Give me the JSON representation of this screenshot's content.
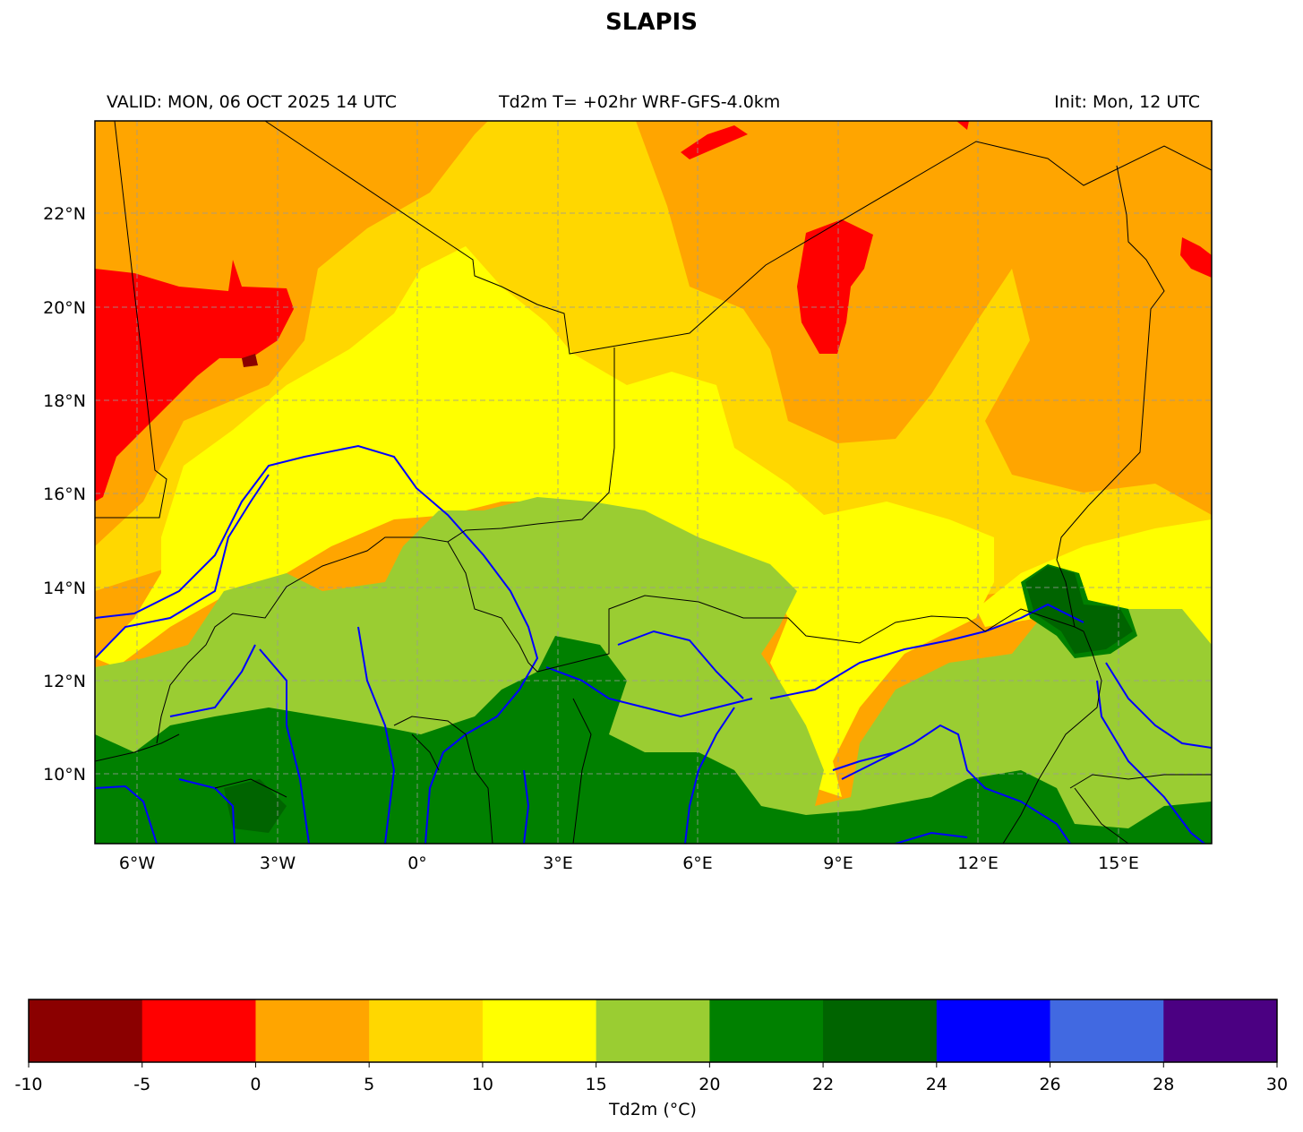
{
  "title": "SLAPIS",
  "subtitle_left": "VALID: MON, 06 OCT 2025 14 UTC",
  "subtitle_center": "Td2m T= +02hr WRF-GFS-4.0km",
  "subtitle_right": "Init: Mon, 12 UTC",
  "map": {
    "lon_range": [
      -7.0,
      16.9
    ],
    "lat_range": [
      8.5,
      24.0
    ],
    "lon_ticks": [
      "6°W",
      "3°W",
      "0°",
      "3°E",
      "6°E",
      "9°E",
      "12°E",
      "15°E"
    ],
    "lon_tick_values": [
      -6,
      -3,
      0,
      3,
      6,
      9,
      12,
      15
    ],
    "lat_ticks": [
      "22°N",
      "20°N",
      "18°N",
      "16°N",
      "14°N",
      "12°N",
      "10°N"
    ],
    "lat_tick_values": [
      22,
      20,
      18,
      16,
      14,
      12,
      10
    ],
    "gridlines": true,
    "country_border_color": "#000000",
    "river_color": "#0000ff"
  },
  "colorbar": {
    "label": "Td2m (°C)",
    "ticks": [
      "-10",
      "-5",
      "0",
      "5",
      "10",
      "15",
      "20",
      "22",
      "24",
      "26",
      "28",
      "30"
    ],
    "colors": [
      "#8b0000",
      "#ff0000",
      "#ffa500",
      "#ffd700",
      "#ffff00",
      "#9acd32",
      "#008000",
      "#006400",
      "#0000ff",
      "#4169e1",
      "#4b0082"
    ]
  }
}
